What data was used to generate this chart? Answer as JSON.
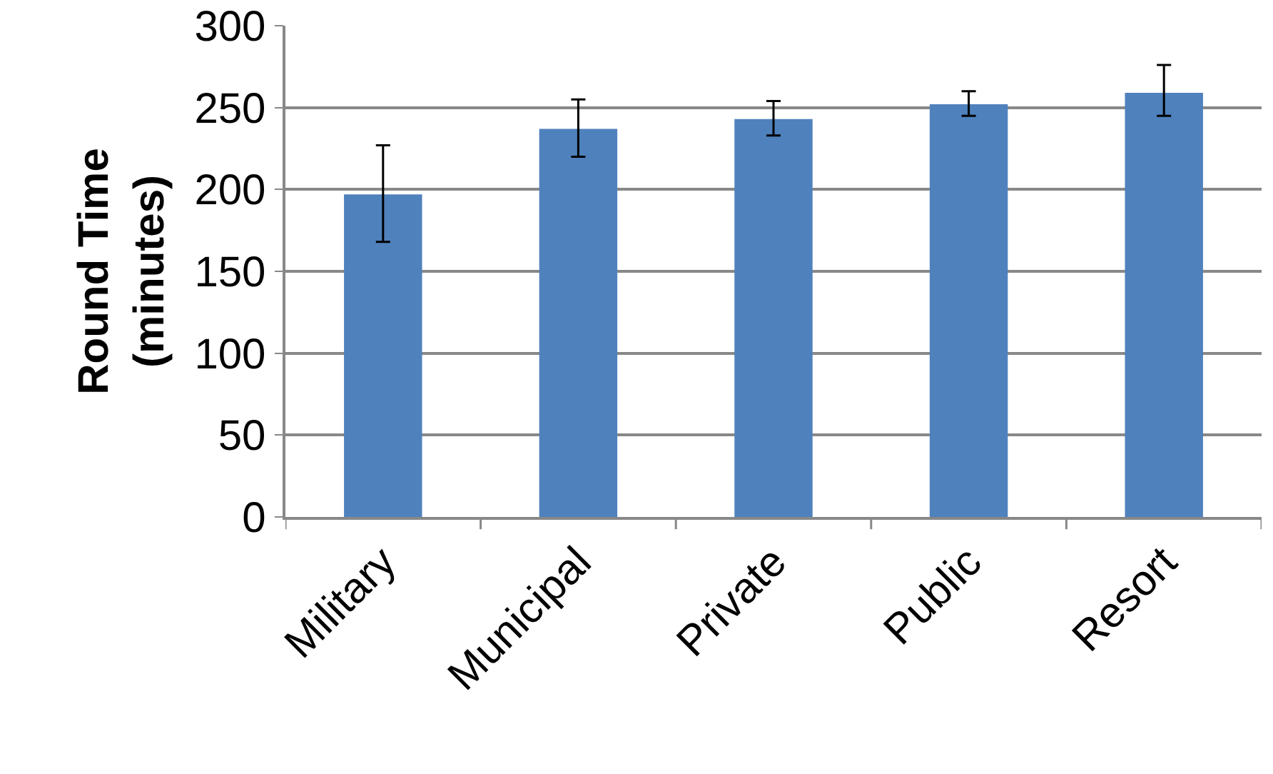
{
  "chart_data": {
    "type": "bar",
    "ylabel": "Round Time\n(minutes)",
    "categories": [
      "Military",
      "Municipal",
      "Private",
      "Public",
      "Resort"
    ],
    "values": [
      197,
      237,
      243,
      252,
      259
    ],
    "errors": [
      [
        168,
        227
      ],
      [
        220,
        255
      ],
      [
        233,
        254
      ],
      [
        245,
        260
      ],
      [
        245,
        276
      ]
    ],
    "color": "#4f81bd",
    "ylim": [
      0,
      300
    ],
    "yticks": [
      0,
      50,
      100,
      150,
      200,
      250,
      300
    ],
    "grid": "y"
  }
}
